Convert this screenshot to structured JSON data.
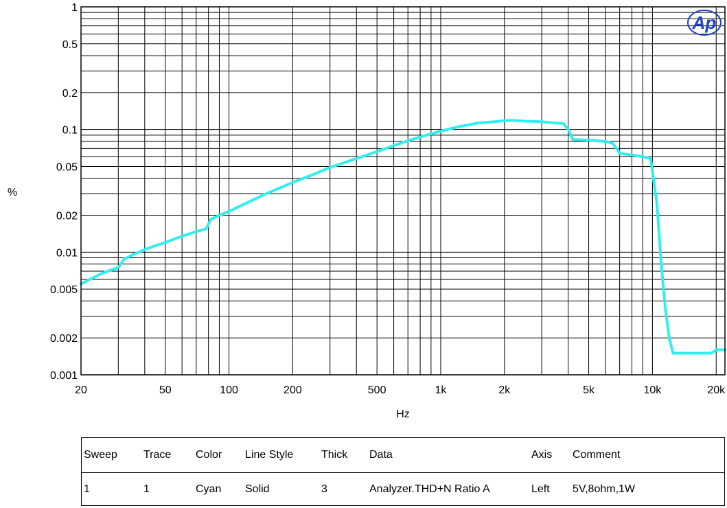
{
  "chart_data": {
    "type": "line",
    "title": "",
    "xlabel": "Hz",
    "ylabel": "%",
    "x_scale": "log",
    "y_scale": "log",
    "xlim": [
      20,
      22000
    ],
    "ylim": [
      0.001,
      1
    ],
    "grid": true,
    "x_ticks": [
      {
        "value": 20,
        "label": "20"
      },
      {
        "value": 50,
        "label": "50"
      },
      {
        "value": 100,
        "label": "100"
      },
      {
        "value": 200,
        "label": "200"
      },
      {
        "value": 500,
        "label": "500"
      },
      {
        "value": 1000,
        "label": "1k"
      },
      {
        "value": 2000,
        "label": "2k"
      },
      {
        "value": 5000,
        "label": "5k"
      },
      {
        "value": 10000,
        "label": "10k"
      },
      {
        "value": 20000,
        "label": "20k"
      }
    ],
    "y_ticks": [
      {
        "value": 1,
        "label": "1"
      },
      {
        "value": 0.5,
        "label": "0.5"
      },
      {
        "value": 0.2,
        "label": "0.2"
      },
      {
        "value": 0.1,
        "label": "0.1"
      },
      {
        "value": 0.05,
        "label": "0.05"
      },
      {
        "value": 0.02,
        "label": "0.02"
      },
      {
        "value": 0.01,
        "label": "0.01"
      },
      {
        "value": 0.005,
        "label": "0.005"
      },
      {
        "value": 0.002,
        "label": "0.002"
      },
      {
        "value": 0.001,
        "label": "0.001"
      }
    ],
    "series": [
      {
        "color": "#33eeee",
        "x": [
          20,
          22,
          25,
          28,
          30,
          32,
          35,
          40,
          45,
          50,
          60,
          70,
          78,
          82,
          90,
          100,
          120,
          150,
          200,
          250,
          300,
          400,
          500,
          600,
          700,
          800,
          1000,
          1200,
          1500,
          1800,
          2000,
          2200,
          2500,
          3000,
          3500,
          3800,
          4000,
          4200,
          5000,
          6000,
          6500,
          7000,
          8000,
          9000,
          9800,
          10500,
          11000,
          11500,
          12000,
          12500,
          14000,
          16000,
          18000,
          19000,
          20000,
          21000,
          22000
        ],
        "y": [
          0.0055,
          0.006,
          0.0067,
          0.0072,
          0.0075,
          0.0088,
          0.0095,
          0.0105,
          0.0113,
          0.012,
          0.0135,
          0.0147,
          0.0155,
          0.0185,
          0.02,
          0.0215,
          0.025,
          0.03,
          0.037,
          0.043,
          0.049,
          0.058,
          0.066,
          0.074,
          0.081,
          0.087,
          0.097,
          0.105,
          0.113,
          0.116,
          0.118,
          0.119,
          0.117,
          0.116,
          0.113,
          0.112,
          0.1,
          0.083,
          0.082,
          0.08,
          0.077,
          0.064,
          0.062,
          0.06,
          0.058,
          0.025,
          0.008,
          0.0035,
          0.002,
          0.0015,
          0.0015,
          0.0015,
          0.0015,
          0.0015,
          0.0016,
          0.0016,
          0.0016
        ]
      }
    ]
  },
  "logo": {
    "text": "Ap"
  },
  "legend": {
    "headers": [
      "Sweep",
      "Trace",
      "Color",
      "Line Style",
      "Thick",
      "Data",
      "Axis",
      "Comment"
    ],
    "rows": [
      [
        "1",
        "1",
        "Cyan",
        "Solid",
        "3",
        "Analyzer.THD+N Ratio A",
        "Left",
        "5V,8ohm,1W"
      ]
    ]
  }
}
